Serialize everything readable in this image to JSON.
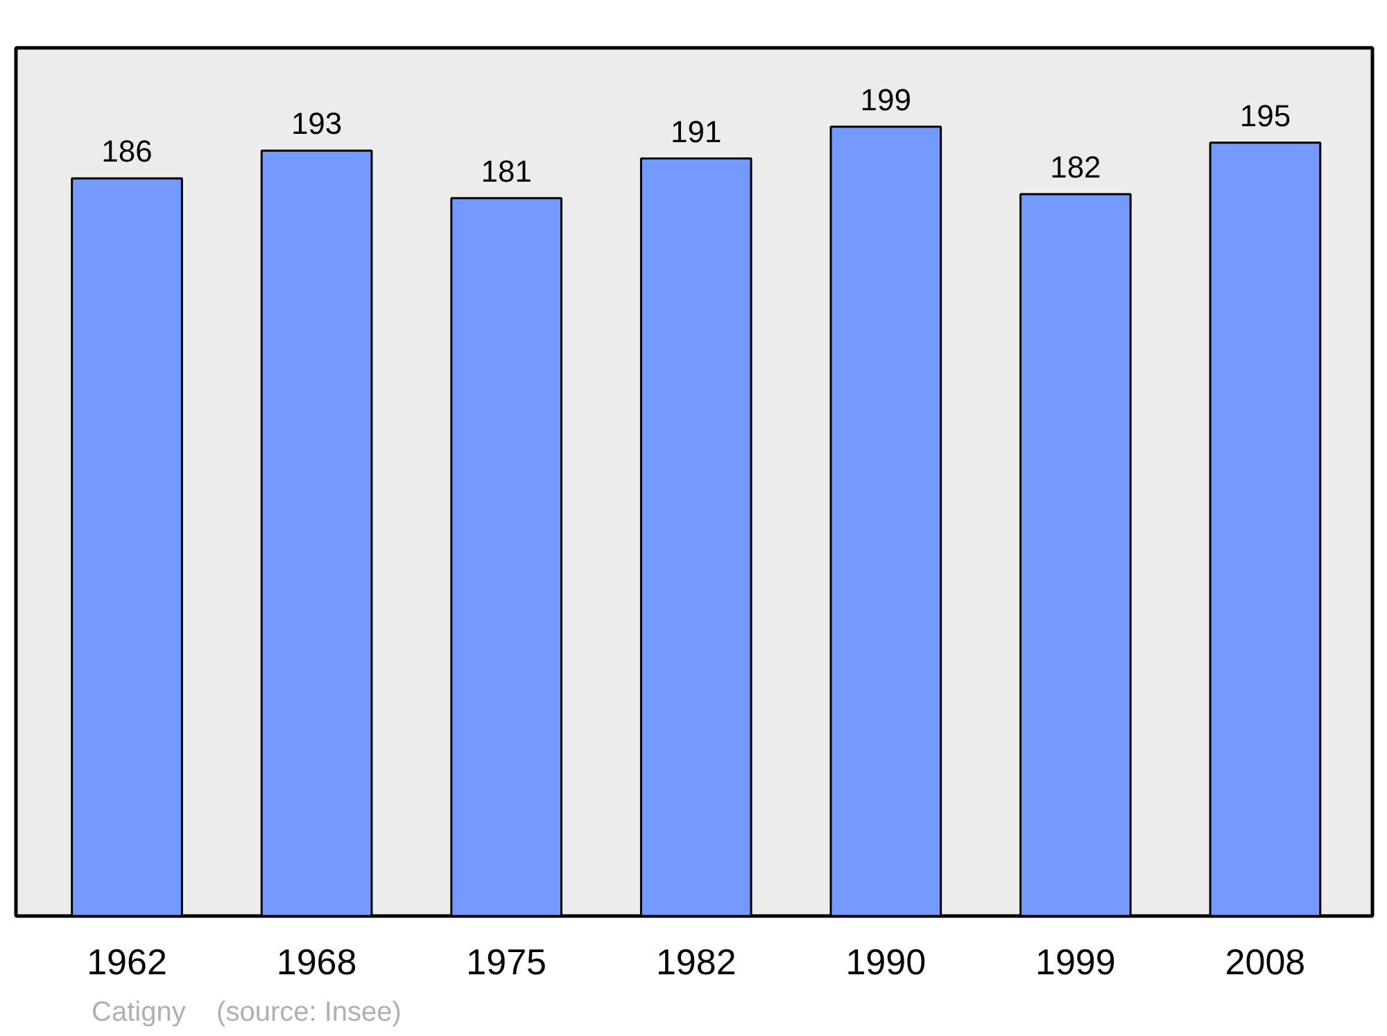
{
  "chart_data": {
    "type": "bar",
    "categories": [
      "1962",
      "1968",
      "1975",
      "1982",
      "1990",
      "1999",
      "2008"
    ],
    "values": [
      186,
      193,
      181,
      191,
      199,
      182,
      195
    ],
    "color": "#7499ff",
    "data_labels": true,
    "grid": false,
    "annotations": [
      "Catigny",
      "(source: Insee)"
    ]
  }
}
